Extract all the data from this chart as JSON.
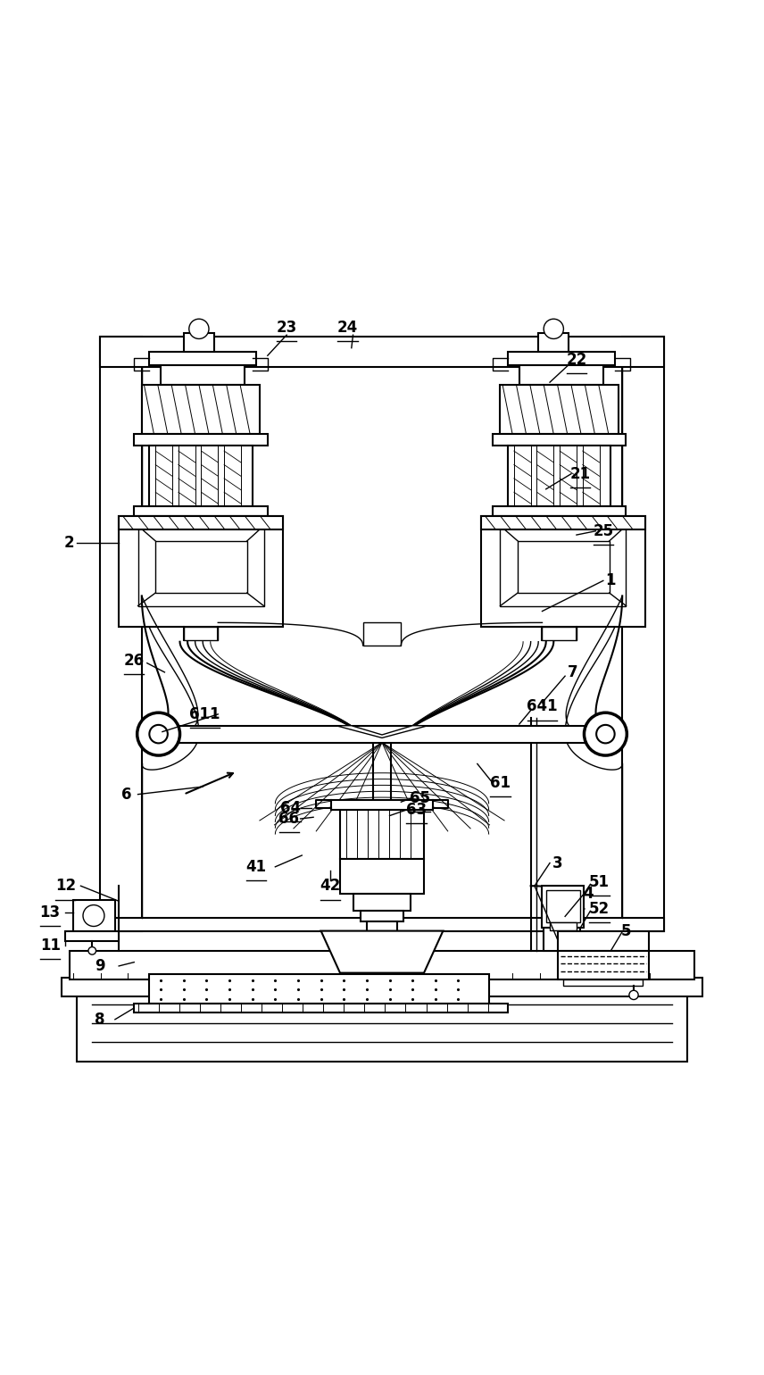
{
  "bg_color": "#ffffff",
  "lw": 1.5,
  "lw2": 1.0,
  "lw3": 0.7
}
